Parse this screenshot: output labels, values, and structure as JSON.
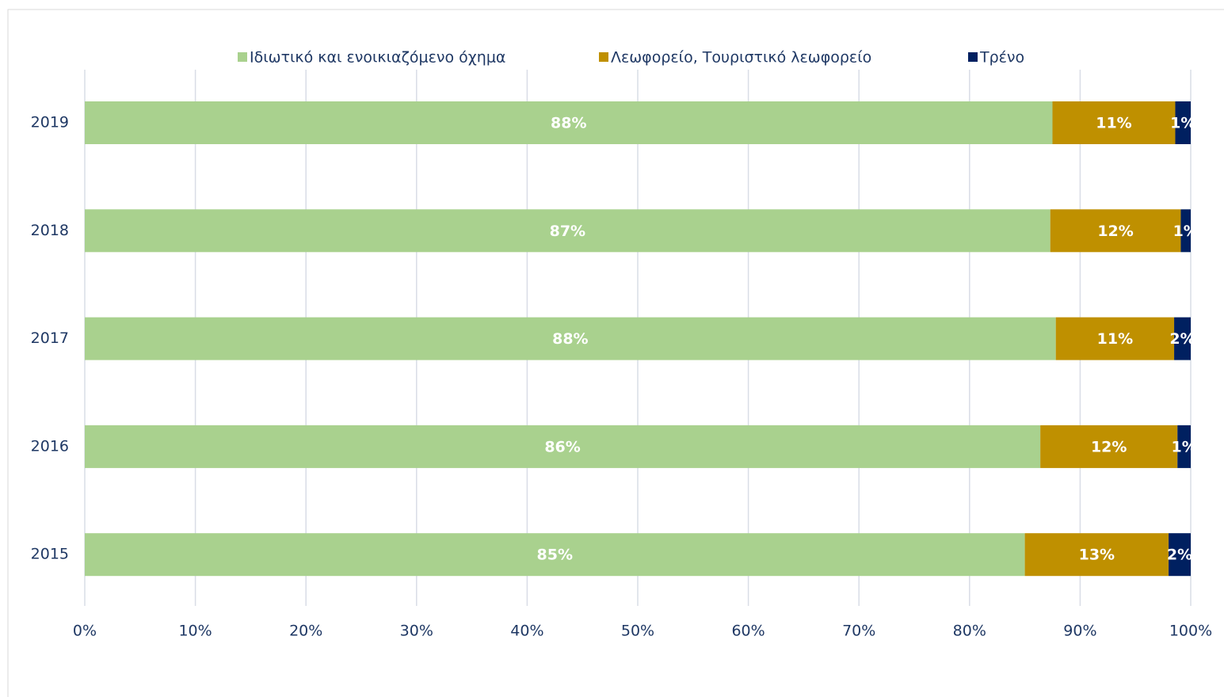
{
  "chart_data": {
    "type": "stacked-barh",
    "categories": [
      "2019",
      "2018",
      "2017",
      "2016",
      "2015"
    ],
    "series": [
      {
        "name": "Ιδιωτικό και ενοικιαζόμενο όχημα",
        "color": "#a9d18e",
        "values": [
          87.5,
          87.3,
          87.8,
          86.4,
          85.0
        ],
        "value_labels": [
          "88%",
          "87%",
          "88%",
          "86%",
          "85%"
        ]
      },
      {
        "name": "Λεωφορείο, Τουριστικό λεωφορείο",
        "color": "#bf9000",
        "values": [
          11.1,
          11.8,
          10.7,
          12.4,
          13.0
        ],
        "value_labels": [
          "11%",
          "12%",
          "11%",
          "12%",
          "13%"
        ]
      },
      {
        "name": "Τρένο",
        "color": "#002060",
        "values": [
          1.4,
          0.9,
          1.5,
          1.2,
          2.0
        ],
        "value_labels": [
          "1%",
          "1%",
          "2%",
          "1%",
          "2%"
        ]
      }
    ],
    "xlim": [
      0,
      100
    ],
    "xticks": [
      {
        "value": 0,
        "label": "0%"
      },
      {
        "value": 10,
        "label": "10%"
      },
      {
        "value": 20,
        "label": "20%"
      },
      {
        "value": 30,
        "label": "30%"
      },
      {
        "value": 40,
        "label": "40%"
      },
      {
        "value": 50,
        "label": "50%"
      },
      {
        "value": 60,
        "label": "60%"
      },
      {
        "value": 70,
        "label": "70%"
      },
      {
        "value": 80,
        "label": "80%"
      },
      {
        "value": 90,
        "label": "90%"
      },
      {
        "value": 100,
        "label": "100%"
      }
    ],
    "grid": true,
    "legend": "top"
  }
}
